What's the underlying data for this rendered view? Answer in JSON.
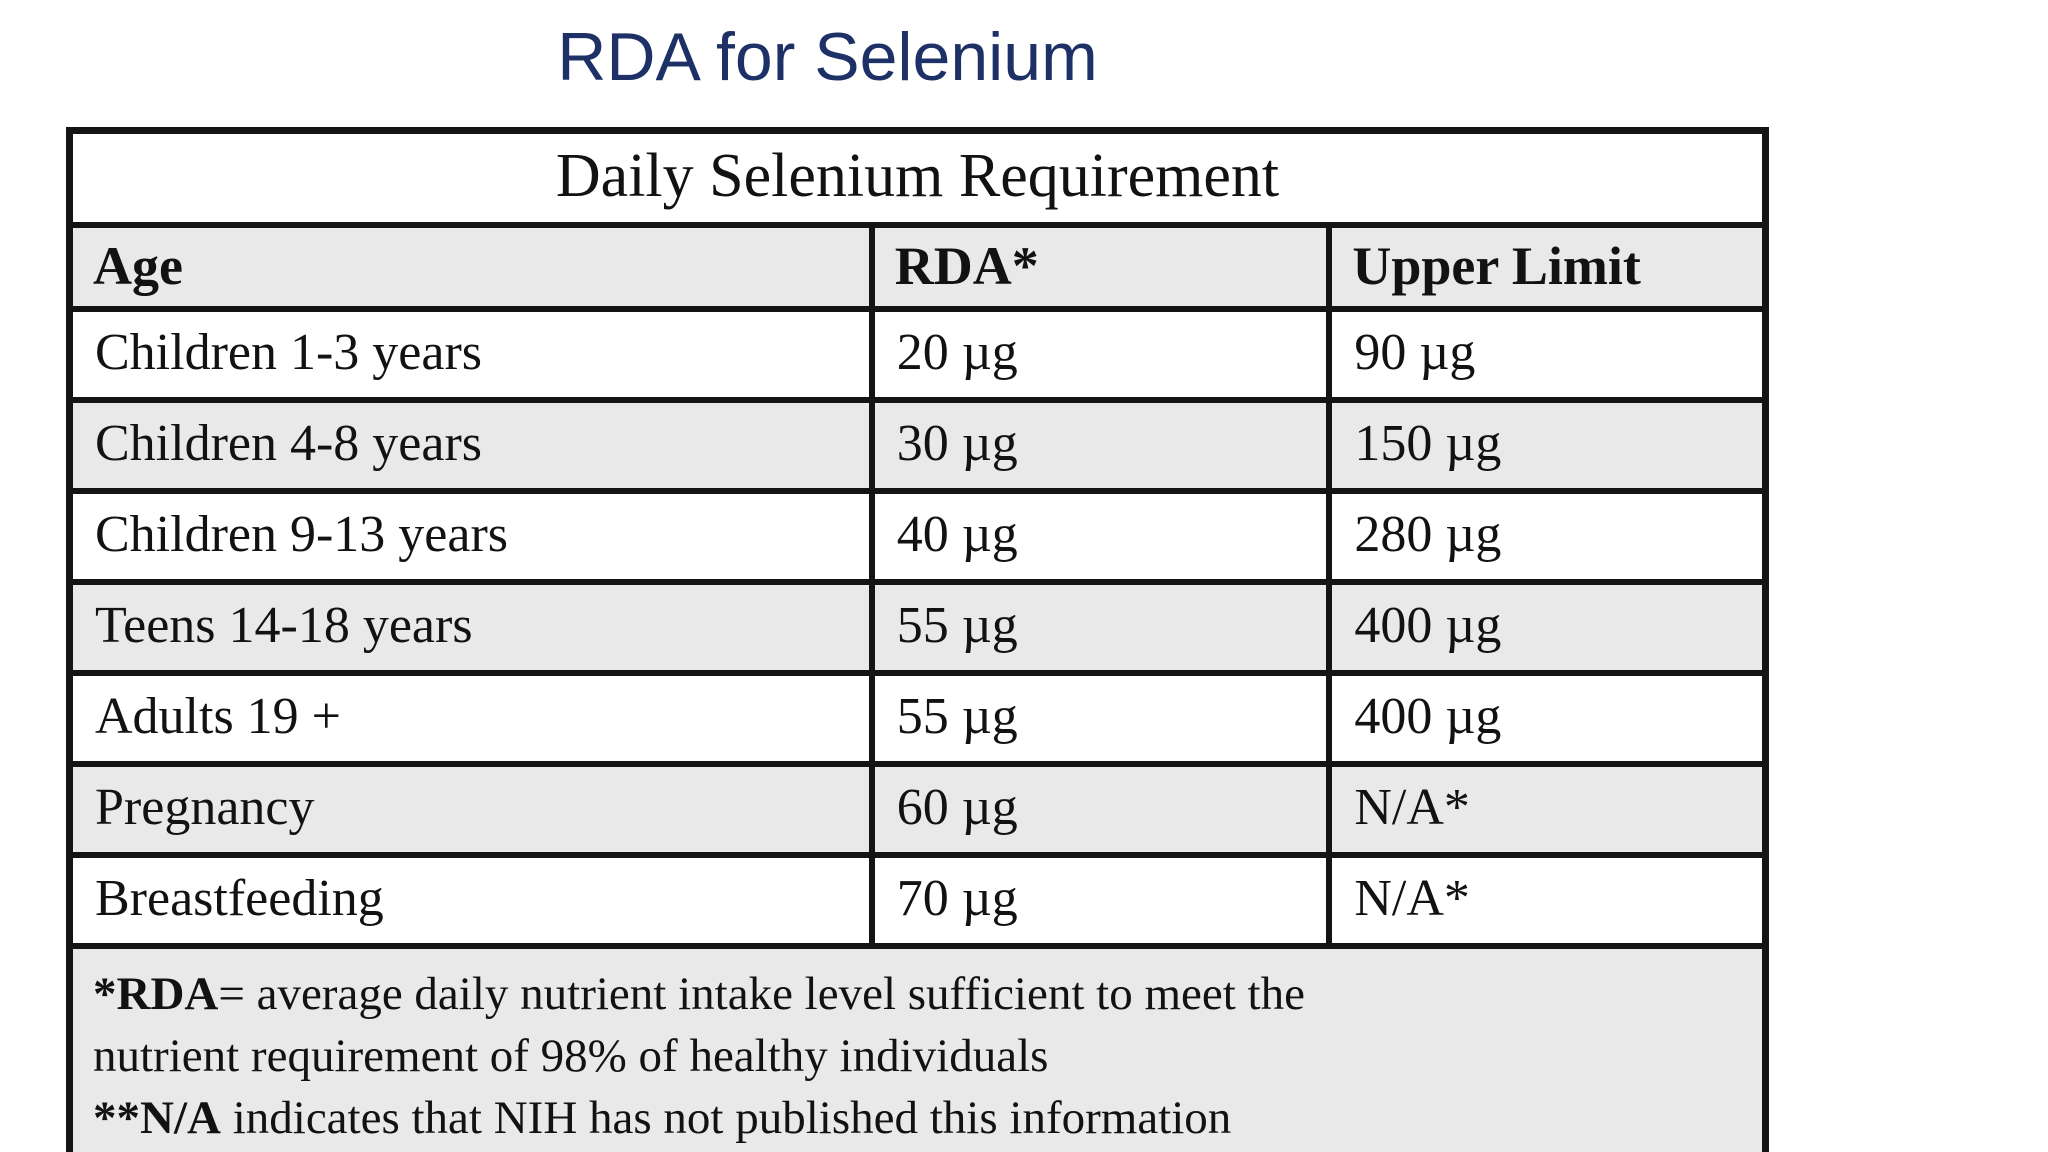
{
  "page_title": "RDA for Selenium",
  "table": {
    "title": "Daily Selenium Requirement",
    "columns": [
      "Age",
      "RDA*",
      "Upper Limit"
    ],
    "rows": [
      {
        "age": "Children 1-3 years",
        "rda": "20 µg",
        "upper": "90 µg"
      },
      {
        "age": "Children 4-8 years",
        "rda": "30 µg",
        "upper": "150 µg"
      },
      {
        "age": "Children 9-13 years",
        "rda": "40 µg",
        "upper": "280 µg"
      },
      {
        "age": "Teens 14-18 years",
        "rda": "55 µg",
        "upper": "400 µg"
      },
      {
        "age": "Adults 19 +",
        "rda": "55 µg",
        "upper": "400 µg"
      },
      {
        "age": "Pregnancy",
        "rda": "60 µg",
        "upper": "N/A*"
      },
      {
        "age": "Breastfeeding",
        "rda": "70 µg",
        "upper": "N/A*"
      }
    ],
    "footnote_lines": [
      {
        "bold": "*RDA",
        "text": "= average daily nutrient intake level sufficient to meet the"
      },
      {
        "bold": "",
        "text": "nutrient requirement of 98% of healthy individuals"
      },
      {
        "bold": "**N/A",
        "text": " indicates that NIH has not published this information"
      }
    ]
  },
  "colors": {
    "title_navy": "#1e3166",
    "row_shade_gray": "#e9e9e9",
    "table_border": "#141414",
    "text": "#121212"
  }
}
